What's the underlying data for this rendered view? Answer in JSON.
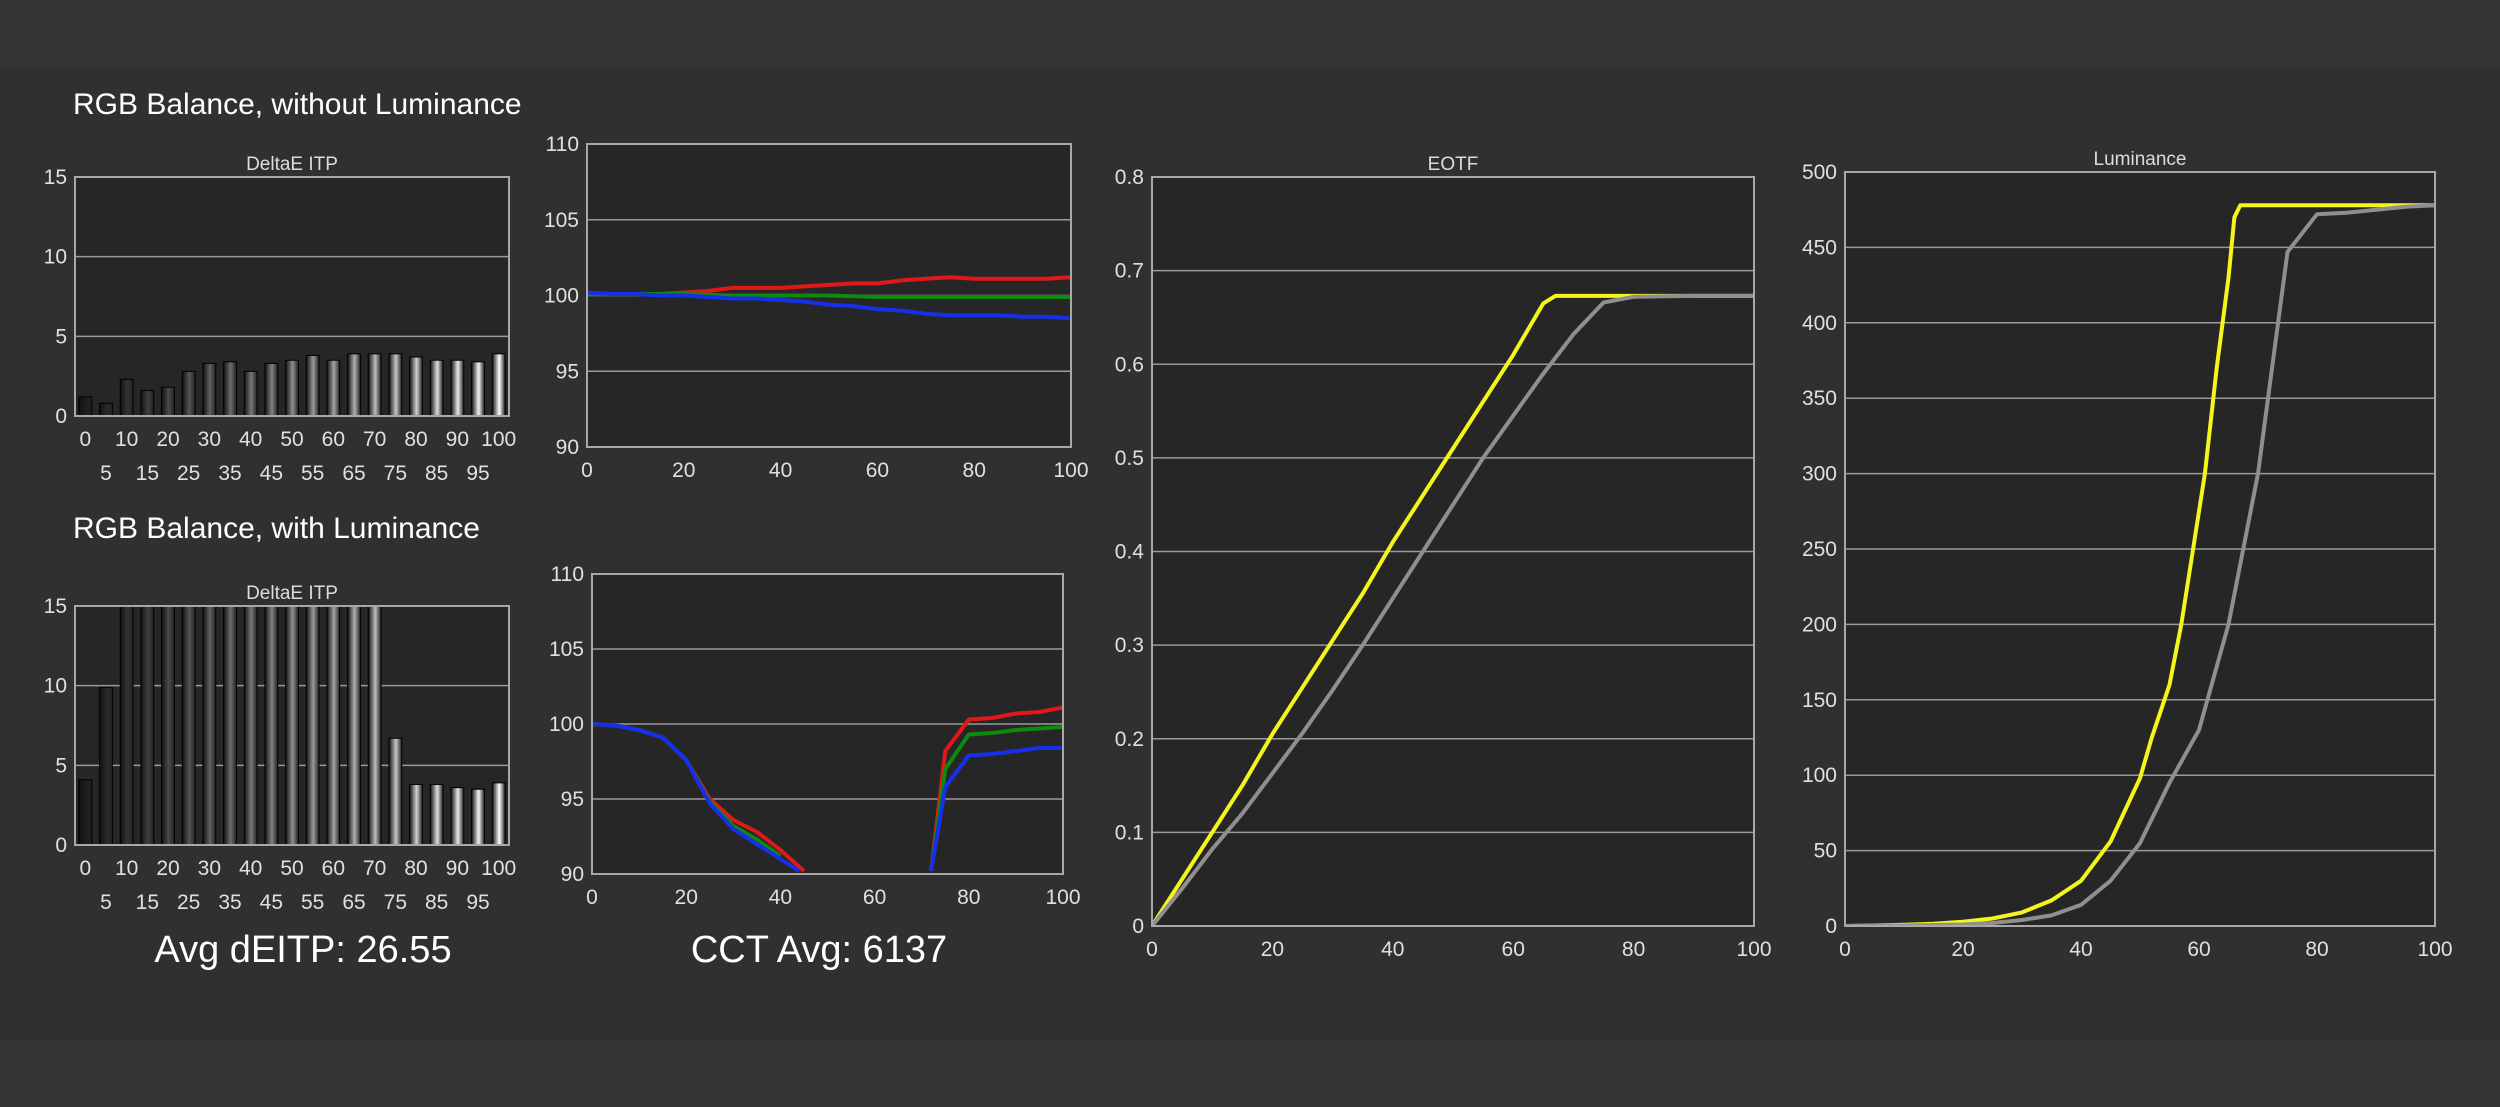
{
  "headings": {
    "without_luminance": "RGB Balance, without Luminance",
    "with_luminance": "RGB Balance, with Luminance",
    "avg_deitp": "Avg dEITP: 26.55",
    "cct_avg": "CCT Avg: 6137"
  },
  "colors": {
    "red": "#e01818",
    "green": "#0e8a0e",
    "blue": "#1530e8",
    "yellow": "#f5f51e",
    "gray": "#8f8f8f",
    "plot_bg": "#262626",
    "grid": "#9a9a9a"
  },
  "chart_data": [
    {
      "id": "deltae-without",
      "type": "bar",
      "title": "DeltaE ITP",
      "categories": [
        0,
        5,
        10,
        15,
        20,
        25,
        30,
        35,
        40,
        45,
        50,
        55,
        60,
        65,
        70,
        75,
        80,
        85,
        90,
        95,
        100
      ],
      "values": [
        1.2,
        0.8,
        2.3,
        1.6,
        1.8,
        2.8,
        3.3,
        3.4,
        2.8,
        3.3,
        3.5,
        3.8,
        3.5,
        3.9,
        3.9,
        3.9,
        3.7,
        3.5,
        3.5,
        3.4,
        3.9
      ],
      "ylim": [
        0,
        15
      ],
      "yticks": [
        0,
        5,
        10,
        15
      ],
      "xticks_top": [
        0,
        10,
        20,
        30,
        40,
        50,
        60,
        70,
        80,
        90,
        100
      ],
      "xticks_bottom": [
        5,
        15,
        25,
        35,
        45,
        55,
        65,
        75,
        85,
        95
      ],
      "grid": true
    },
    {
      "id": "rgb-without",
      "type": "line",
      "title": "",
      "xlim": [
        0,
        100
      ],
      "ylim": [
        90,
        110
      ],
      "xticks": [
        0,
        20,
        40,
        60,
        80,
        100
      ],
      "yticks": [
        90,
        95,
        100,
        105,
        110
      ],
      "grid": true,
      "series": [
        {
          "color": "red",
          "points": [
            [
              0,
              100.2
            ],
            [
              5,
              100.1
            ],
            [
              10,
              100.1
            ],
            [
              15,
              100.1
            ],
            [
              20,
              100.2
            ],
            [
              25,
              100.3
            ],
            [
              30,
              100.5
            ],
            [
              35,
              100.5
            ],
            [
              40,
              100.5
            ],
            [
              45,
              100.6
            ],
            [
              50,
              100.7
            ],
            [
              55,
              100.8
            ],
            [
              60,
              100.8
            ],
            [
              65,
              101.0
            ],
            [
              70,
              101.1
            ],
            [
              75,
              101.2
            ],
            [
              80,
              101.1
            ],
            [
              85,
              101.1
            ],
            [
              90,
              101.1
            ],
            [
              95,
              101.1
            ],
            [
              100,
              101.2
            ]
          ]
        },
        {
          "color": "green",
          "points": [
            [
              0,
              100.1
            ],
            [
              10,
              100.1
            ],
            [
              20,
              100.1
            ],
            [
              30,
              100.0
            ],
            [
              40,
              100.0
            ],
            [
              50,
              100.0
            ],
            [
              60,
              99.9
            ],
            [
              70,
              99.9
            ],
            [
              80,
              99.9
            ],
            [
              90,
              99.9
            ],
            [
              100,
              99.9
            ]
          ]
        },
        {
          "color": "blue",
          "points": [
            [
              0,
              100.2
            ],
            [
              5,
              100.1
            ],
            [
              10,
              100.1
            ],
            [
              15,
              100.0
            ],
            [
              20,
              100.0
            ],
            [
              25,
              99.9
            ],
            [
              30,
              99.8
            ],
            [
              35,
              99.8
            ],
            [
              40,
              99.7
            ],
            [
              45,
              99.6
            ],
            [
              50,
              99.4
            ],
            [
              55,
              99.3
            ],
            [
              60,
              99.1
            ],
            [
              65,
              99.0
            ],
            [
              70,
              98.8
            ],
            [
              75,
              98.7
            ],
            [
              80,
              98.7
            ],
            [
              85,
              98.7
            ],
            [
              90,
              98.6
            ],
            [
              95,
              98.6
            ],
            [
              100,
              98.5
            ]
          ]
        }
      ]
    },
    {
      "id": "deltae-with",
      "type": "bar",
      "title": "DeltaE ITP",
      "categories": [
        0,
        5,
        10,
        15,
        20,
        25,
        30,
        35,
        40,
        45,
        50,
        55,
        60,
        65,
        70,
        75,
        80,
        85,
        90,
        95,
        100
      ],
      "values": [
        4.1,
        9.9,
        15,
        15,
        15,
        15,
        15,
        15,
        15,
        15,
        15,
        15,
        15,
        15,
        15,
        6.7,
        3.8,
        3.8,
        3.6,
        3.5,
        3.9
      ],
      "ylim": [
        0,
        15
      ],
      "yticks": [
        0,
        5,
        10,
        15
      ],
      "xticks_top": [
        0,
        10,
        20,
        30,
        40,
        50,
        60,
        70,
        80,
        90,
        100
      ],
      "xticks_bottom": [
        5,
        15,
        25,
        35,
        45,
        55,
        65,
        75,
        85,
        95
      ],
      "grid": true
    },
    {
      "id": "rgb-with",
      "type": "line",
      "title": "",
      "xlim": [
        0,
        100
      ],
      "ylim": [
        90,
        110
      ],
      "xticks": [
        0,
        20,
        40,
        60,
        80,
        100
      ],
      "yticks": [
        90,
        95,
        100,
        105,
        110
      ],
      "grid": true,
      "series": [
        {
          "color": "red",
          "segments": [
            [
              [
                0,
                100
              ],
              [
                5,
                99.9
              ],
              [
                10,
                99.6
              ],
              [
                15,
                99.1
              ],
              [
                20,
                97.6
              ],
              [
                25,
                95.0
              ],
              [
                30,
                93.6
              ],
              [
                35,
                92.8
              ],
              [
                40,
                91.6
              ],
              [
                45,
                90.2
              ]
            ],
            [
              [
                72,
                90.2
              ],
              [
                75,
                98.2
              ],
              [
                80,
                100.3
              ],
              [
                85,
                100.4
              ],
              [
                90,
                100.7
              ],
              [
                95,
                100.8
              ],
              [
                100,
                101.1
              ]
            ]
          ]
        },
        {
          "color": "green",
          "segments": [
            [
              [
                0,
                100
              ],
              [
                5,
                99.9
              ],
              [
                10,
                99.6
              ],
              [
                15,
                99.1
              ],
              [
                20,
                97.6
              ],
              [
                25,
                94.8
              ],
              [
                30,
                93.2
              ],
              [
                35,
                92.3
              ],
              [
                40,
                91.2
              ]
            ],
            [
              [
                72,
                90.2
              ],
              [
                75,
                97.0
              ],
              [
                80,
                99.3
              ],
              [
                85,
                99.4
              ],
              [
                90,
                99.6
              ],
              [
                95,
                99.7
              ],
              [
                100,
                99.8
              ]
            ]
          ]
        },
        {
          "color": "blue",
          "segments": [
            [
              [
                0,
                100
              ],
              [
                5,
                99.9
              ],
              [
                10,
                99.6
              ],
              [
                15,
                99.1
              ],
              [
                20,
                97.6
              ],
              [
                25,
                94.7
              ],
              [
                30,
                93.0
              ],
              [
                35,
                92.0
              ],
              [
                40,
                91.0
              ],
              [
                44,
                90.2
              ]
            ],
            [
              [
                72,
                90.2
              ],
              [
                75,
                95.8
              ],
              [
                80,
                97.9
              ],
              [
                85,
                98.0
              ],
              [
                90,
                98.2
              ],
              [
                95,
                98.4
              ],
              [
                100,
                98.4
              ]
            ]
          ]
        }
      ]
    },
    {
      "id": "eotf",
      "type": "line",
      "title": "EOTF",
      "xlim": [
        0,
        100
      ],
      "ylim": [
        0,
        0.8
      ],
      "xticks": [
        0,
        20,
        40,
        60,
        80,
        100
      ],
      "yticks": [
        0,
        0.1,
        0.2,
        0.3,
        0.4,
        0.5,
        0.6,
        0.7,
        0.8
      ],
      "grid": true,
      "series": [
        {
          "color": "yellow",
          "points": [
            [
              0,
              0
            ],
            [
              5,
              0.05
            ],
            [
              10,
              0.1
            ],
            [
              15,
              0.15
            ],
            [
              20,
              0.205
            ],
            [
              25,
              0.255
            ],
            [
              30,
              0.305
            ],
            [
              35,
              0.355
            ],
            [
              40,
              0.41
            ],
            [
              45,
              0.46
            ],
            [
              50,
              0.51
            ],
            [
              55,
              0.56
            ],
            [
              60,
              0.61
            ],
            [
              65,
              0.665
            ],
            [
              67,
              0.673
            ],
            [
              75,
              0.673
            ],
            [
              80,
              0.673
            ],
            [
              90,
              0.673
            ],
            [
              100,
              0.673
            ]
          ]
        },
        {
          "color": "gray",
          "points": [
            [
              0,
              0
            ],
            [
              5,
              0.04
            ],
            [
              10,
              0.082
            ],
            [
              15,
              0.12
            ],
            [
              20,
              0.163
            ],
            [
              25,
              0.206
            ],
            [
              30,
              0.252
            ],
            [
              35,
              0.3
            ],
            [
              40,
              0.35
            ],
            [
              45,
              0.4
            ],
            [
              50,
              0.45
            ],
            [
              55,
              0.5
            ],
            [
              60,
              0.545
            ],
            [
              65,
              0.59
            ],
            [
              70,
              0.632
            ],
            [
              75,
              0.666
            ],
            [
              80,
              0.672
            ],
            [
              90,
              0.673
            ],
            [
              100,
              0.673
            ]
          ]
        }
      ]
    },
    {
      "id": "luminance",
      "type": "line",
      "title": "Luminance",
      "xlim": [
        0,
        100
      ],
      "ylim": [
        0,
        500
      ],
      "xticks": [
        0,
        20,
        40,
        60,
        80,
        100
      ],
      "yticks": [
        0,
        50,
        100,
        150,
        200,
        250,
        300,
        350,
        400,
        450,
        500
      ],
      "grid": true,
      "series": [
        {
          "color": "yellow",
          "points": [
            [
              0,
              0
            ],
            [
              5,
              0.3
            ],
            [
              10,
              0.8
            ],
            [
              15,
              1.5
            ],
            [
              20,
              2.8
            ],
            [
              25,
              5
            ],
            [
              30,
              9
            ],
            [
              35,
              17
            ],
            [
              40,
              30
            ],
            [
              45,
              56
            ],
            [
              50,
              98
            ],
            [
              52,
              125
            ],
            [
              55,
              160
            ],
            [
              57,
              200
            ],
            [
              59,
              250
            ],
            [
              61,
              300
            ],
            [
              63,
              370
            ],
            [
              65,
              430
            ],
            [
              66,
              470
            ],
            [
              67,
              478
            ],
            [
              70,
              478
            ],
            [
              80,
              478
            ],
            [
              100,
              478
            ]
          ]
        },
        {
          "color": "gray",
          "points": [
            [
              0,
              0
            ],
            [
              10,
              0.3
            ],
            [
              20,
              1
            ],
            [
              25,
              2
            ],
            [
              30,
              4
            ],
            [
              35,
              7
            ],
            [
              40,
              14
            ],
            [
              45,
              30
            ],
            [
              50,
              55
            ],
            [
              55,
              95
            ],
            [
              60,
              130
            ],
            [
              65,
              200
            ],
            [
              70,
              300
            ],
            [
              75,
              447
            ],
            [
              80,
              472
            ],
            [
              85,
              473
            ],
            [
              90,
              475
            ],
            [
              95,
              477
            ],
            [
              100,
              478
            ]
          ]
        }
      ]
    }
  ]
}
